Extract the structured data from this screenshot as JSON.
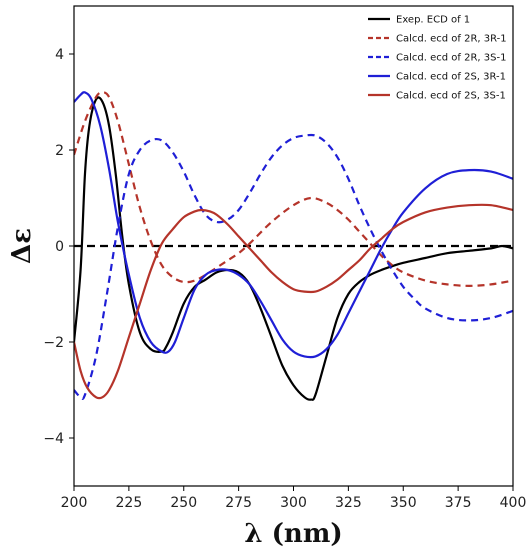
{
  "chart_data": {
    "type": "line",
    "xlabel": "λ (nm)",
    "ylabel": "Δε",
    "xlim": [
      200,
      400
    ],
    "ylim": [
      -5,
      5
    ],
    "x_ticks": [
      200,
      225,
      250,
      275,
      300,
      325,
      350,
      375,
      400
    ],
    "y_ticks": [
      -4,
      -2,
      0,
      2,
      4
    ],
    "grid": false,
    "legend_position": "top-right",
    "zero_line": {
      "y": 0,
      "color": "#000000",
      "style": "dashed"
    },
    "series": [
      {
        "name": "Exep. ECD of 1",
        "color": "#000000",
        "style": "solid",
        "x": [
          200,
          203,
          205,
          207,
          210,
          213,
          216,
          219,
          222,
          225,
          230,
          235,
          240,
          242,
          245,
          250,
          255,
          260,
          265,
          270,
          275,
          280,
          285,
          290,
          295,
          300,
          305,
          308,
          310,
          315,
          320,
          325,
          330,
          335,
          340,
          345,
          350,
          360,
          370,
          380,
          390,
          395,
          400
        ],
        "y": [
          -2.0,
          -0.5,
          1.5,
          2.5,
          3.05,
          3.0,
          2.5,
          1.5,
          0.2,
          -0.8,
          -1.8,
          -2.15,
          -2.2,
          -2.1,
          -1.8,
          -1.2,
          -0.85,
          -0.7,
          -0.55,
          -0.5,
          -0.55,
          -0.8,
          -1.3,
          -1.9,
          -2.5,
          -2.9,
          -3.15,
          -3.2,
          -3.1,
          -2.3,
          -1.5,
          -1.0,
          -0.75,
          -0.6,
          -0.5,
          -0.42,
          -0.35,
          -0.25,
          -0.15,
          -0.1,
          -0.05,
          0.0,
          -0.05
        ]
      },
      {
        "name": "Calcd. ecd of 2R, 3R-1",
        "color": "#b5342a",
        "style": "dashed",
        "x": [
          200,
          205,
          210,
          213,
          216,
          220,
          225,
          230,
          235,
          240,
          245,
          250,
          255,
          260,
          265,
          270,
          275,
          280,
          290,
          300,
          308,
          315,
          320,
          325,
          330,
          335,
          340,
          345,
          350,
          360,
          370,
          380,
          390,
          400
        ],
        "y": [
          1.9,
          2.6,
          3.1,
          3.2,
          3.1,
          2.6,
          1.7,
          0.8,
          0.1,
          -0.4,
          -0.65,
          -0.75,
          -0.72,
          -0.6,
          -0.45,
          -0.3,
          -0.15,
          0.05,
          0.5,
          0.85,
          1.0,
          0.9,
          0.75,
          0.55,
          0.3,
          0.05,
          -0.2,
          -0.4,
          -0.55,
          -0.72,
          -0.8,
          -0.83,
          -0.8,
          -0.72
        ]
      },
      {
        "name": "Calcd. ecd of 2R, 3S-1",
        "color": "#1f1fd6",
        "style": "dashed",
        "x": [
          200,
          203,
          205,
          210,
          215,
          220,
          225,
          230,
          235,
          240,
          245,
          250,
          255,
          260,
          265,
          270,
          275,
          280,
          285,
          290,
          295,
          300,
          305,
          310,
          315,
          320,
          325,
          330,
          335,
          340,
          345,
          350,
          355,
          360,
          370,
          380,
          390,
          400
        ],
        "y": [
          -3.0,
          -3.15,
          -3.1,
          -2.3,
          -1.0,
          0.4,
          1.5,
          2.0,
          2.2,
          2.2,
          1.95,
          1.55,
          1.05,
          0.65,
          0.5,
          0.55,
          0.75,
          1.1,
          1.5,
          1.85,
          2.1,
          2.25,
          2.3,
          2.3,
          2.15,
          1.85,
          1.4,
          0.85,
          0.35,
          -0.1,
          -0.5,
          -0.85,
          -1.1,
          -1.3,
          -1.5,
          -1.55,
          -1.5,
          -1.35
        ]
      },
      {
        "name": "Calcd. ecd of 2S, 3R-1",
        "color": "#1f1fd6",
        "style": "solid",
        "x": [
          200,
          203,
          205,
          208,
          212,
          216,
          220,
          225,
          230,
          235,
          240,
          243,
          246,
          250,
          255,
          260,
          265,
          270,
          275,
          280,
          285,
          290,
          295,
          300,
          305,
          310,
          315,
          320,
          325,
          330,
          335,
          340,
          345,
          350,
          360,
          370,
          380,
          390,
          400
        ],
        "y": [
          3.0,
          3.15,
          3.2,
          3.05,
          2.5,
          1.6,
          0.5,
          -0.6,
          -1.5,
          -2.0,
          -2.2,
          -2.2,
          -2.0,
          -1.5,
          -0.9,
          -0.6,
          -0.5,
          -0.5,
          -0.6,
          -0.8,
          -1.15,
          -1.55,
          -1.95,
          -2.2,
          -2.3,
          -2.3,
          -2.15,
          -1.85,
          -1.4,
          -0.95,
          -0.5,
          -0.05,
          0.35,
          0.7,
          1.2,
          1.5,
          1.58,
          1.55,
          1.4
        ]
      },
      {
        "name": "Calcd. ecd of 2S, 3S-1",
        "color": "#b5342a",
        "style": "solid",
        "x": [
          200,
          203,
          206,
          210,
          213,
          216,
          220,
          225,
          230,
          235,
          240,
          245,
          250,
          255,
          258,
          262,
          265,
          270,
          275,
          280,
          285,
          290,
          295,
          300,
          305,
          310,
          315,
          320,
          325,
          330,
          335,
          340,
          345,
          350,
          360,
          370,
          380,
          390,
          400
        ],
        "y": [
          -2.0,
          -2.6,
          -2.95,
          -3.15,
          -3.15,
          -3.0,
          -2.6,
          -1.9,
          -1.2,
          -0.5,
          0.05,
          0.35,
          0.6,
          0.72,
          0.75,
          0.72,
          0.65,
          0.45,
          0.2,
          -0.05,
          -0.3,
          -0.55,
          -0.75,
          -0.9,
          -0.95,
          -0.95,
          -0.85,
          -0.7,
          -0.5,
          -0.3,
          -0.05,
          0.15,
          0.35,
          0.5,
          0.7,
          0.8,
          0.85,
          0.85,
          0.75
        ]
      }
    ]
  }
}
